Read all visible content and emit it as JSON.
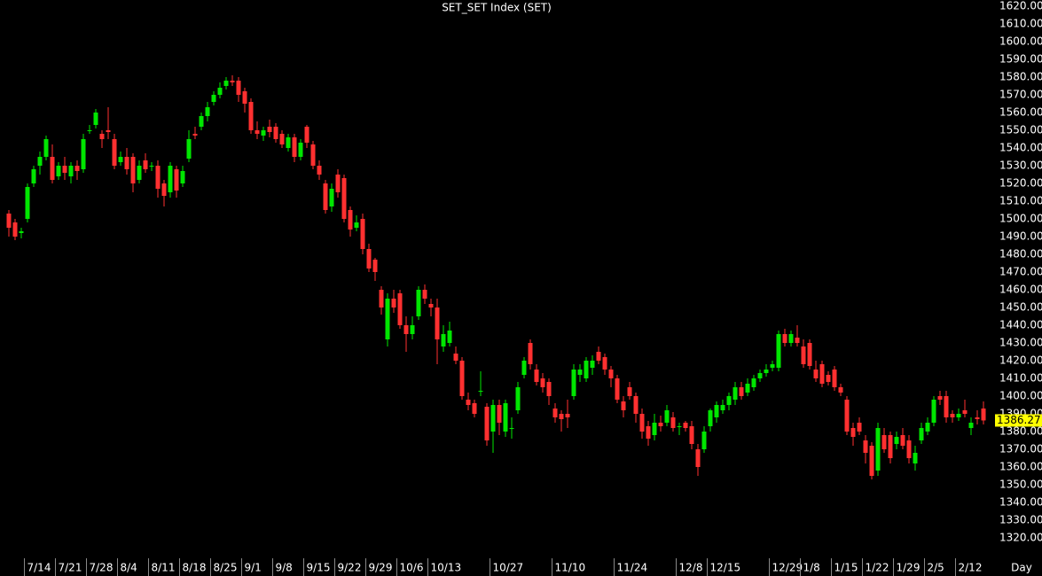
{
  "chart_data": {
    "type": "candlestick",
    "title": "SET_SET Index (SET)",
    "xlabel": "Day",
    "up_color": "#00e600",
    "down_color": "#ff3030",
    "ylim": [
      1309.5,
      1623.5
    ],
    "yticks": [
      {
        "value": 1620,
        "label": "1620.00"
      },
      {
        "value": 1610,
        "label": "1610.00"
      },
      {
        "value": 1600,
        "label": "1600.00"
      },
      {
        "value": 1590,
        "label": "1590.00"
      },
      {
        "value": 1580,
        "label": "1580.00"
      },
      {
        "value": 1570,
        "label": "1570.00"
      },
      {
        "value": 1560,
        "label": "1560.00"
      },
      {
        "value": 1550,
        "label": "1550.00"
      },
      {
        "value": 1540,
        "label": "1540.00"
      },
      {
        "value": 1530,
        "label": "1530.00"
      },
      {
        "value": 1520,
        "label": "1520.00"
      },
      {
        "value": 1510,
        "label": "1510.00"
      },
      {
        "value": 1500,
        "label": "1500.00"
      },
      {
        "value": 1490,
        "label": "1490.00"
      },
      {
        "value": 1480,
        "label": "1480.00"
      },
      {
        "value": 1470,
        "label": "1470.00"
      },
      {
        "value": 1460,
        "label": "1460.00"
      },
      {
        "value": 1450,
        "label": "1450.00"
      },
      {
        "value": 1440,
        "label": "1440.00"
      },
      {
        "value": 1430,
        "label": "1430.00"
      },
      {
        "value": 1420,
        "label": "1420.00"
      },
      {
        "value": 1410,
        "label": "1410.00"
      },
      {
        "value": 1400,
        "label": "1400.00"
      },
      {
        "value": 1390,
        "label": "1390.00"
      },
      {
        "value": 1380,
        "label": "1380.00"
      },
      {
        "value": 1370,
        "label": "1370.00"
      },
      {
        "value": 1360,
        "label": "1360.00"
      },
      {
        "value": 1350,
        "label": "1350.00"
      },
      {
        "value": 1340,
        "label": "1340.00"
      },
      {
        "value": 1330,
        "label": "1330.00"
      },
      {
        "value": 1320,
        "label": "1320.00"
      }
    ],
    "categories": [
      null,
      null,
      null,
      "7/14",
      null,
      null,
      null,
      null,
      "7/21",
      null,
      null,
      null,
      null,
      "7/28",
      null,
      null,
      null,
      null,
      "8/4",
      null,
      null,
      null,
      null,
      "8/11",
      null,
      null,
      null,
      null,
      "8/18",
      null,
      null,
      null,
      null,
      "8/25",
      null,
      null,
      null,
      null,
      "9/1",
      null,
      null,
      null,
      null,
      "9/8",
      null,
      null,
      null,
      null,
      "9/15",
      null,
      null,
      null,
      null,
      "9/22",
      null,
      null,
      null,
      null,
      "9/29",
      null,
      null,
      null,
      null,
      "10/6",
      null,
      null,
      null,
      null,
      "10/13",
      null,
      null,
      null,
      null,
      null,
      null,
      null,
      null,
      null,
      "10/27",
      null,
      null,
      null,
      null,
      null,
      null,
      null,
      null,
      null,
      "11/10",
      null,
      null,
      null,
      null,
      null,
      null,
      null,
      null,
      null,
      "11/24",
      null,
      null,
      null,
      null,
      null,
      null,
      null,
      null,
      null,
      "12/8",
      null,
      null,
      null,
      null,
      "12/15",
      null,
      null,
      null,
      null,
      null,
      null,
      null,
      null,
      null,
      "12/29",
      null,
      null,
      null,
      null,
      "1/8",
      null,
      null,
      null,
      null,
      "1/15",
      null,
      null,
      null,
      null,
      "1/22",
      null,
      null,
      null,
      null,
      "1/29",
      null,
      null,
      null,
      null,
      "2/5",
      null,
      null,
      null,
      null,
      "2/12",
      null,
      null,
      null,
      null
    ],
    "open": [
      1503,
      1498,
      1492,
      1500,
      1520,
      1530,
      1535,
      1535,
      1524,
      1530,
      1524,
      1530,
      1528,
      1550,
      1553,
      1548,
      1550,
      1545,
      1532,
      1535,
      1535,
      1522,
      1533,
      1530,
      1530,
      1520,
      1515,
      1528,
      1520,
      1534,
      1548,
      1552,
      1558,
      1566,
      1570,
      1575,
      1578,
      1578,
      1572,
      1566,
      1550,
      1547,
      1552,
      1552,
      1548,
      1540,
      1546,
      1535,
      1552,
      1542,
      1530,
      1520,
      1507,
      1525,
      1523,
      1505,
      1495,
      1500,
      1483,
      1477,
      1460,
      1432,
      1455,
      1458,
      1440,
      1435,
      1445,
      1460,
      1452,
      1450,
      1428,
      1430,
      1424,
      1420,
      1398,
      1396,
      1403,
      1394,
      1380,
      1395,
      1380,
      1382,
      1392,
      1412,
      1430,
      1415,
      1410,
      1408,
      1393,
      1390,
      1390,
      1400,
      1412,
      1410,
      1416,
      1425,
      1422,
      1415,
      1410,
      1397,
      1405,
      1400,
      1390,
      1383,
      1378,
      1385,
      1385,
      1388,
      1383,
      1385,
      1383,
      1370,
      1370,
      1383,
      1388,
      1392,
      1395,
      1398,
      1405,
      1402,
      1405,
      1410,
      1413,
      1416,
      1416,
      1435,
      1430,
      1433,
      1428,
      1430,
      1415,
      1418,
      1412,
      1415,
      1405,
      1398,
      1382,
      1385,
      1375,
      1372,
      1358,
      1378,
      1378,
      1373,
      1378,
      1375,
      1362,
      1375,
      1380,
      1385,
      1400,
      1400,
      1390,
      1388,
      1392,
      1382,
      1388,
      1393
    ],
    "high": [
      1505,
      1500,
      1495,
      1520,
      1530,
      1538,
      1547,
      1542,
      1532,
      1535,
      1532,
      1533,
      1548,
      1553,
      1562,
      1550,
      1563,
      1548,
      1538,
      1540,
      1537,
      1533,
      1537,
      1532,
      1533,
      1522,
      1532,
      1530,
      1530,
      1550,
      1552,
      1560,
      1566,
      1572,
      1577,
      1580,
      1581,
      1580,
      1574,
      1568,
      1555,
      1552,
      1556,
      1554,
      1550,
      1548,
      1548,
      1545,
      1553,
      1544,
      1533,
      1522,
      1520,
      1528,
      1525,
      1507,
      1502,
      1503,
      1486,
      1478,
      1462,
      1458,
      1460,
      1460,
      1445,
      1445,
      1462,
      1463,
      1455,
      1455,
      1440,
      1442,
      1428,
      1422,
      1402,
      1398,
      1414,
      1396,
      1398,
      1398,
      1398,
      1388,
      1408,
      1422,
      1432,
      1418,
      1413,
      1410,
      1396,
      1392,
      1398,
      1418,
      1418,
      1422,
      1423,
      1428,
      1424,
      1417,
      1412,
      1400,
      1408,
      1402,
      1393,
      1386,
      1390,
      1389,
      1395,
      1391,
      1385,
      1386,
      1386,
      1373,
      1383,
      1393,
      1397,
      1398,
      1402,
      1408,
      1408,
      1410,
      1412,
      1415,
      1418,
      1420,
      1437,
      1438,
      1437,
      1440,
      1432,
      1432,
      1420,
      1420,
      1414,
      1417,
      1407,
      1400,
      1385,
      1388,
      1378,
      1374,
      1385,
      1382,
      1380,
      1380,
      1382,
      1378,
      1372,
      1385,
      1388,
      1400,
      1403,
      1403,
      1392,
      1393,
      1398,
      1388,
      1392,
      1397
    ],
    "low": [
      1490,
      1488,
      1489,
      1498,
      1518,
      1525,
      1533,
      1520,
      1522,
      1522,
      1520,
      1522,
      1526,
      1548,
      1551,
      1540,
      1545,
      1528,
      1530,
      1525,
      1515,
      1520,
      1526,
      1527,
      1512,
      1507,
      1512,
      1512,
      1518,
      1532,
      1545,
      1550,
      1555,
      1564,
      1568,
      1573,
      1575,
      1566,
      1560,
      1548,
      1545,
      1544,
      1546,
      1543,
      1540,
      1538,
      1532,
      1533,
      1540,
      1528,
      1522,
      1503,
      1504,
      1512,
      1498,
      1490,
      1493,
      1480,
      1470,
      1465,
      1446,
      1428,
      1447,
      1438,
      1425,
      1432,
      1443,
      1452,
      1445,
      1418,
      1425,
      1428,
      1418,
      1398,
      1392,
      1388,
      1400,
      1372,
      1368,
      1378,
      1377,
      1376,
      1390,
      1410,
      1415,
      1406,
      1402,
      1395,
      1385,
      1380,
      1382,
      1398,
      1408,
      1408,
      1412,
      1418,
      1412,
      1405,
      1396,
      1388,
      1398,
      1385,
      1376,
      1372,
      1375,
      1380,
      1383,
      1380,
      1378,
      1380,
      1370,
      1355,
      1368,
      1380,
      1385,
      1390,
      1392,
      1395,
      1398,
      1400,
      1403,
      1408,
      1411,
      1414,
      1414,
      1428,
      1428,
      1428,
      1416,
      1415,
      1408,
      1405,
      1406,
      1403,
      1400,
      1378,
      1372,
      1378,
      1362,
      1353,
      1355,
      1368,
      1362,
      1370,
      1370,
      1362,
      1358,
      1373,
      1378,
      1383,
      1395,
      1385,
      1385,
      1386,
      1388,
      1378,
      1384,
      1384
    ],
    "close": [
      1495,
      1490,
      1493,
      1518,
      1528,
      1535,
      1545,
      1522,
      1530,
      1526,
      1530,
      1527,
      1545,
      1550,
      1560,
      1545,
      1549,
      1530,
      1535,
      1528,
      1520,
      1530,
      1528,
      1530,
      1517,
      1513,
      1530,
      1516,
      1527,
      1545,
      1547,
      1558,
      1563,
      1570,
      1574,
      1578,
      1577,
      1570,
      1565,
      1550,
      1548,
      1550,
      1549,
      1545,
      1542,
      1546,
      1535,
      1543,
      1543,
      1530,
      1525,
      1505,
      1517,
      1515,
      1500,
      1494,
      1498,
      1483,
      1472,
      1470,
      1450,
      1455,
      1450,
      1440,
      1435,
      1440,
      1460,
      1455,
      1450,
      1432,
      1435,
      1437,
      1420,
      1400,
      1395,
      1390,
      1403,
      1375,
      1395,
      1385,
      1396,
      1382,
      1405,
      1420,
      1418,
      1408,
      1405,
      1400,
      1388,
      1387,
      1388,
      1415,
      1415,
      1420,
      1420,
      1420,
      1415,
      1410,
      1398,
      1392,
      1400,
      1390,
      1380,
      1376,
      1385,
      1383,
      1392,
      1382,
      1383,
      1382,
      1373,
      1360,
      1380,
      1392,
      1395,
      1395,
      1400,
      1405,
      1400,
      1407,
      1410,
      1413,
      1415,
      1418,
      1435,
      1430,
      1435,
      1430,
      1418,
      1417,
      1410,
      1407,
      1408,
      1405,
      1402,
      1380,
      1377,
      1380,
      1368,
      1355,
      1382,
      1370,
      1365,
      1377,
      1372,
      1365,
      1368,
      1382,
      1385,
      1398,
      1398,
      1388,
      1388,
      1390,
      1390,
      1385,
      1387,
      1386.27
    ]
  }
}
